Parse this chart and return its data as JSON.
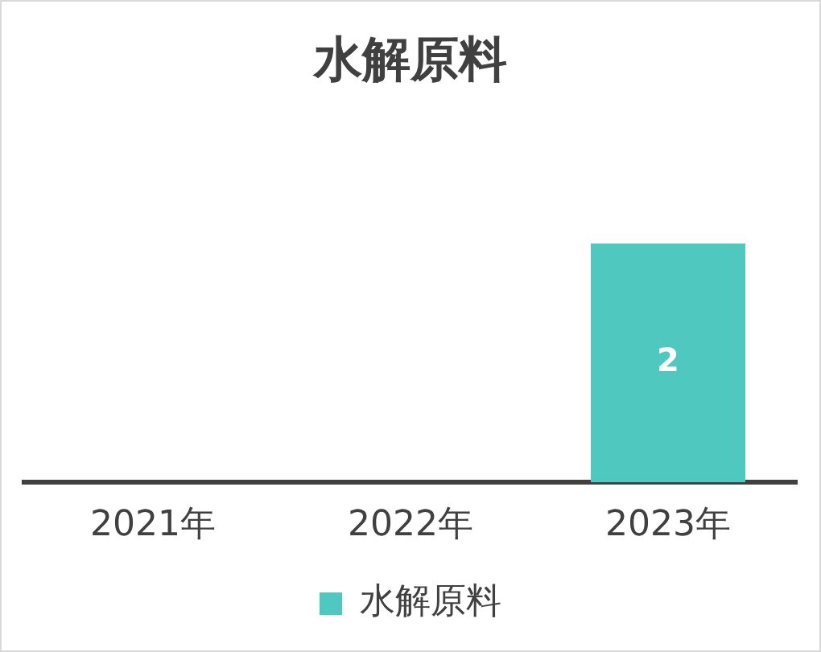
{
  "chart_data": {
    "type": "bar",
    "title": "水解原料",
    "categories": [
      "2021年",
      "2022年",
      "2023年"
    ],
    "series": [
      {
        "name": "水解原料",
        "color": "#4fc9bf",
        "values": [
          null,
          null,
          2
        ]
      }
    ],
    "data_labels": true,
    "legend": "bottom",
    "grid": false
  }
}
